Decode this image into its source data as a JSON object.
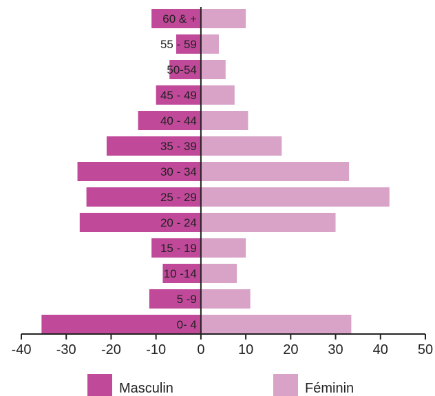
{
  "chart_data": {
    "type": "bar",
    "orientation": "horizontal",
    "layout": "population-pyramid",
    "categories": [
      "60 & +",
      "55 - 59",
      "50-54",
      "45 - 49",
      "40 - 44",
      "35 - 39",
      "30 - 34",
      "25 - 29",
      "20 - 24",
      "15 - 19",
      "10 -14",
      "5 -9",
      "0- 4"
    ],
    "series": [
      {
        "name": "Masculin",
        "color": "#c04a99",
        "values": [
          -11,
          -5.5,
          -7,
          -10,
          -14,
          -21,
          -27.5,
          -25.5,
          -27,
          -11,
          -8.5,
          -11.5,
          -35.5
        ]
      },
      {
        "name": "Féminin",
        "color": "#d9a3c8",
        "values": [
          10,
          4,
          5.5,
          7.5,
          10.5,
          18,
          33,
          42,
          30,
          10,
          8,
          11,
          33.5
        ]
      }
    ],
    "xlim": [
      -40,
      50
    ],
    "xticks": [
      -40,
      -30,
      -20,
      -10,
      0,
      10,
      20,
      30,
      40,
      50
    ],
    "legend_position": "bottom",
    "grid": false
  }
}
